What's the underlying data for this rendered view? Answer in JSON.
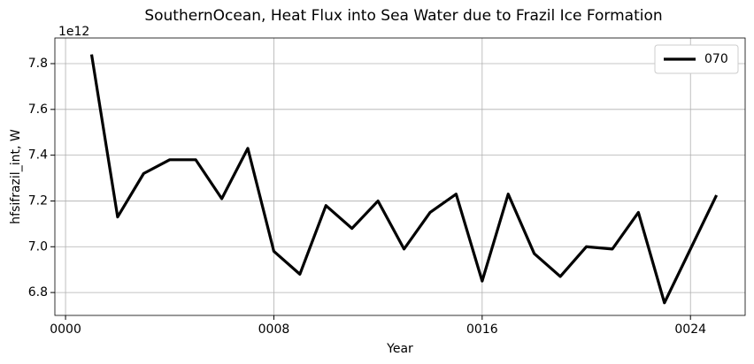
{
  "chart_data": {
    "type": "line",
    "title": "SouthernOcean, Heat Flux into Sea Water due to Frazil Ice Formation",
    "x_label": "Year",
    "y_label": "hfsifrazil_int, W",
    "y_offset_label": "1e12",
    "x": [
      1,
      2,
      3,
      4,
      5,
      6,
      7,
      8,
      9,
      10,
      11,
      12,
      13,
      14,
      15,
      16,
      17,
      18,
      19,
      20,
      21,
      22,
      23,
      24,
      25
    ],
    "series": [
      {
        "name": "070",
        "color": "#000000",
        "values": [
          7.84,
          7.13,
          7.32,
          7.38,
          7.38,
          7.21,
          7.43,
          6.98,
          6.88,
          7.18,
          7.08,
          7.2,
          6.99,
          7.15,
          7.23,
          6.85,
          7.23,
          6.97,
          6.87,
          7.0,
          6.99,
          7.15,
          6.755,
          6.99,
          7.225
        ]
      }
    ],
    "xlim": [
      -0.41,
      26.1
    ],
    "xticks": [
      {
        "value": 0,
        "label": "0000"
      },
      {
        "value": 8,
        "label": "0008"
      },
      {
        "value": 16,
        "label": "0016"
      },
      {
        "value": 24,
        "label": "0024"
      }
    ],
    "ylim": [
      6.7,
      7.912
    ],
    "yticks": [
      6.8,
      {
        "value": 7,
        "label": "7.0"
      },
      7.2,
      7.4,
      7.6,
      7.8
    ],
    "grid": true,
    "legend": "upper right"
  }
}
